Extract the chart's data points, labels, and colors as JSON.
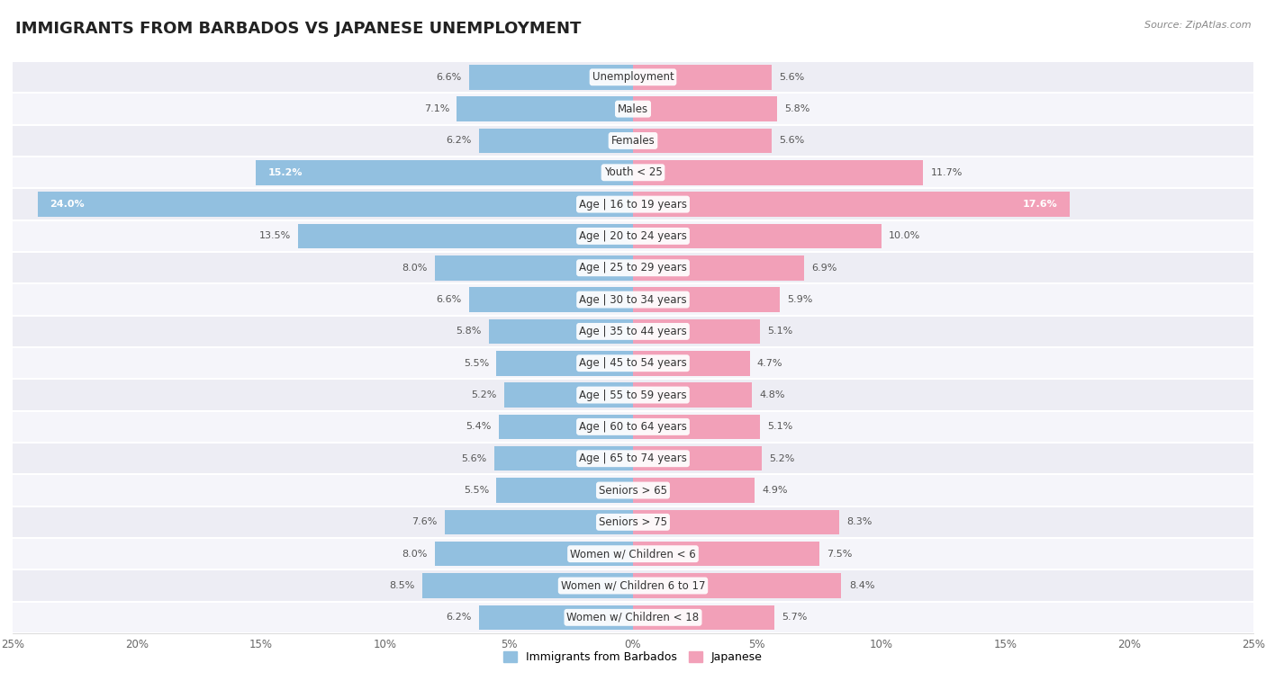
{
  "title": "IMMIGRANTS FROM BARBADOS VS JAPANESE UNEMPLOYMENT",
  "source": "Source: ZipAtlas.com",
  "categories": [
    "Unemployment",
    "Males",
    "Females",
    "Youth < 25",
    "Age | 16 to 19 years",
    "Age | 20 to 24 years",
    "Age | 25 to 29 years",
    "Age | 30 to 34 years",
    "Age | 35 to 44 years",
    "Age | 45 to 54 years",
    "Age | 55 to 59 years",
    "Age | 60 to 64 years",
    "Age | 65 to 74 years",
    "Seniors > 65",
    "Seniors > 75",
    "Women w/ Children < 6",
    "Women w/ Children 6 to 17",
    "Women w/ Children < 18"
  ],
  "barbados_values": [
    6.6,
    7.1,
    6.2,
    15.2,
    24.0,
    13.5,
    8.0,
    6.6,
    5.8,
    5.5,
    5.2,
    5.4,
    5.6,
    5.5,
    7.6,
    8.0,
    8.5,
    6.2
  ],
  "japanese_values": [
    5.6,
    5.8,
    5.6,
    11.7,
    17.6,
    10.0,
    6.9,
    5.9,
    5.1,
    4.7,
    4.8,
    5.1,
    5.2,
    4.9,
    8.3,
    7.5,
    8.4,
    5.7
  ],
  "barbados_color": "#92C0E0",
  "japanese_color": "#F2A0B8",
  "barbados_label": "Immigrants from Barbados",
  "japanese_label": "Japanese",
  "xlim": 25.0,
  "bar_height": 0.78,
  "row_colors_odd": "#ededf4",
  "row_colors_even": "#f5f5fa",
  "title_fontsize": 13,
  "label_fontsize": 8.5,
  "value_fontsize": 8.0,
  "bg_color": "#ffffff"
}
